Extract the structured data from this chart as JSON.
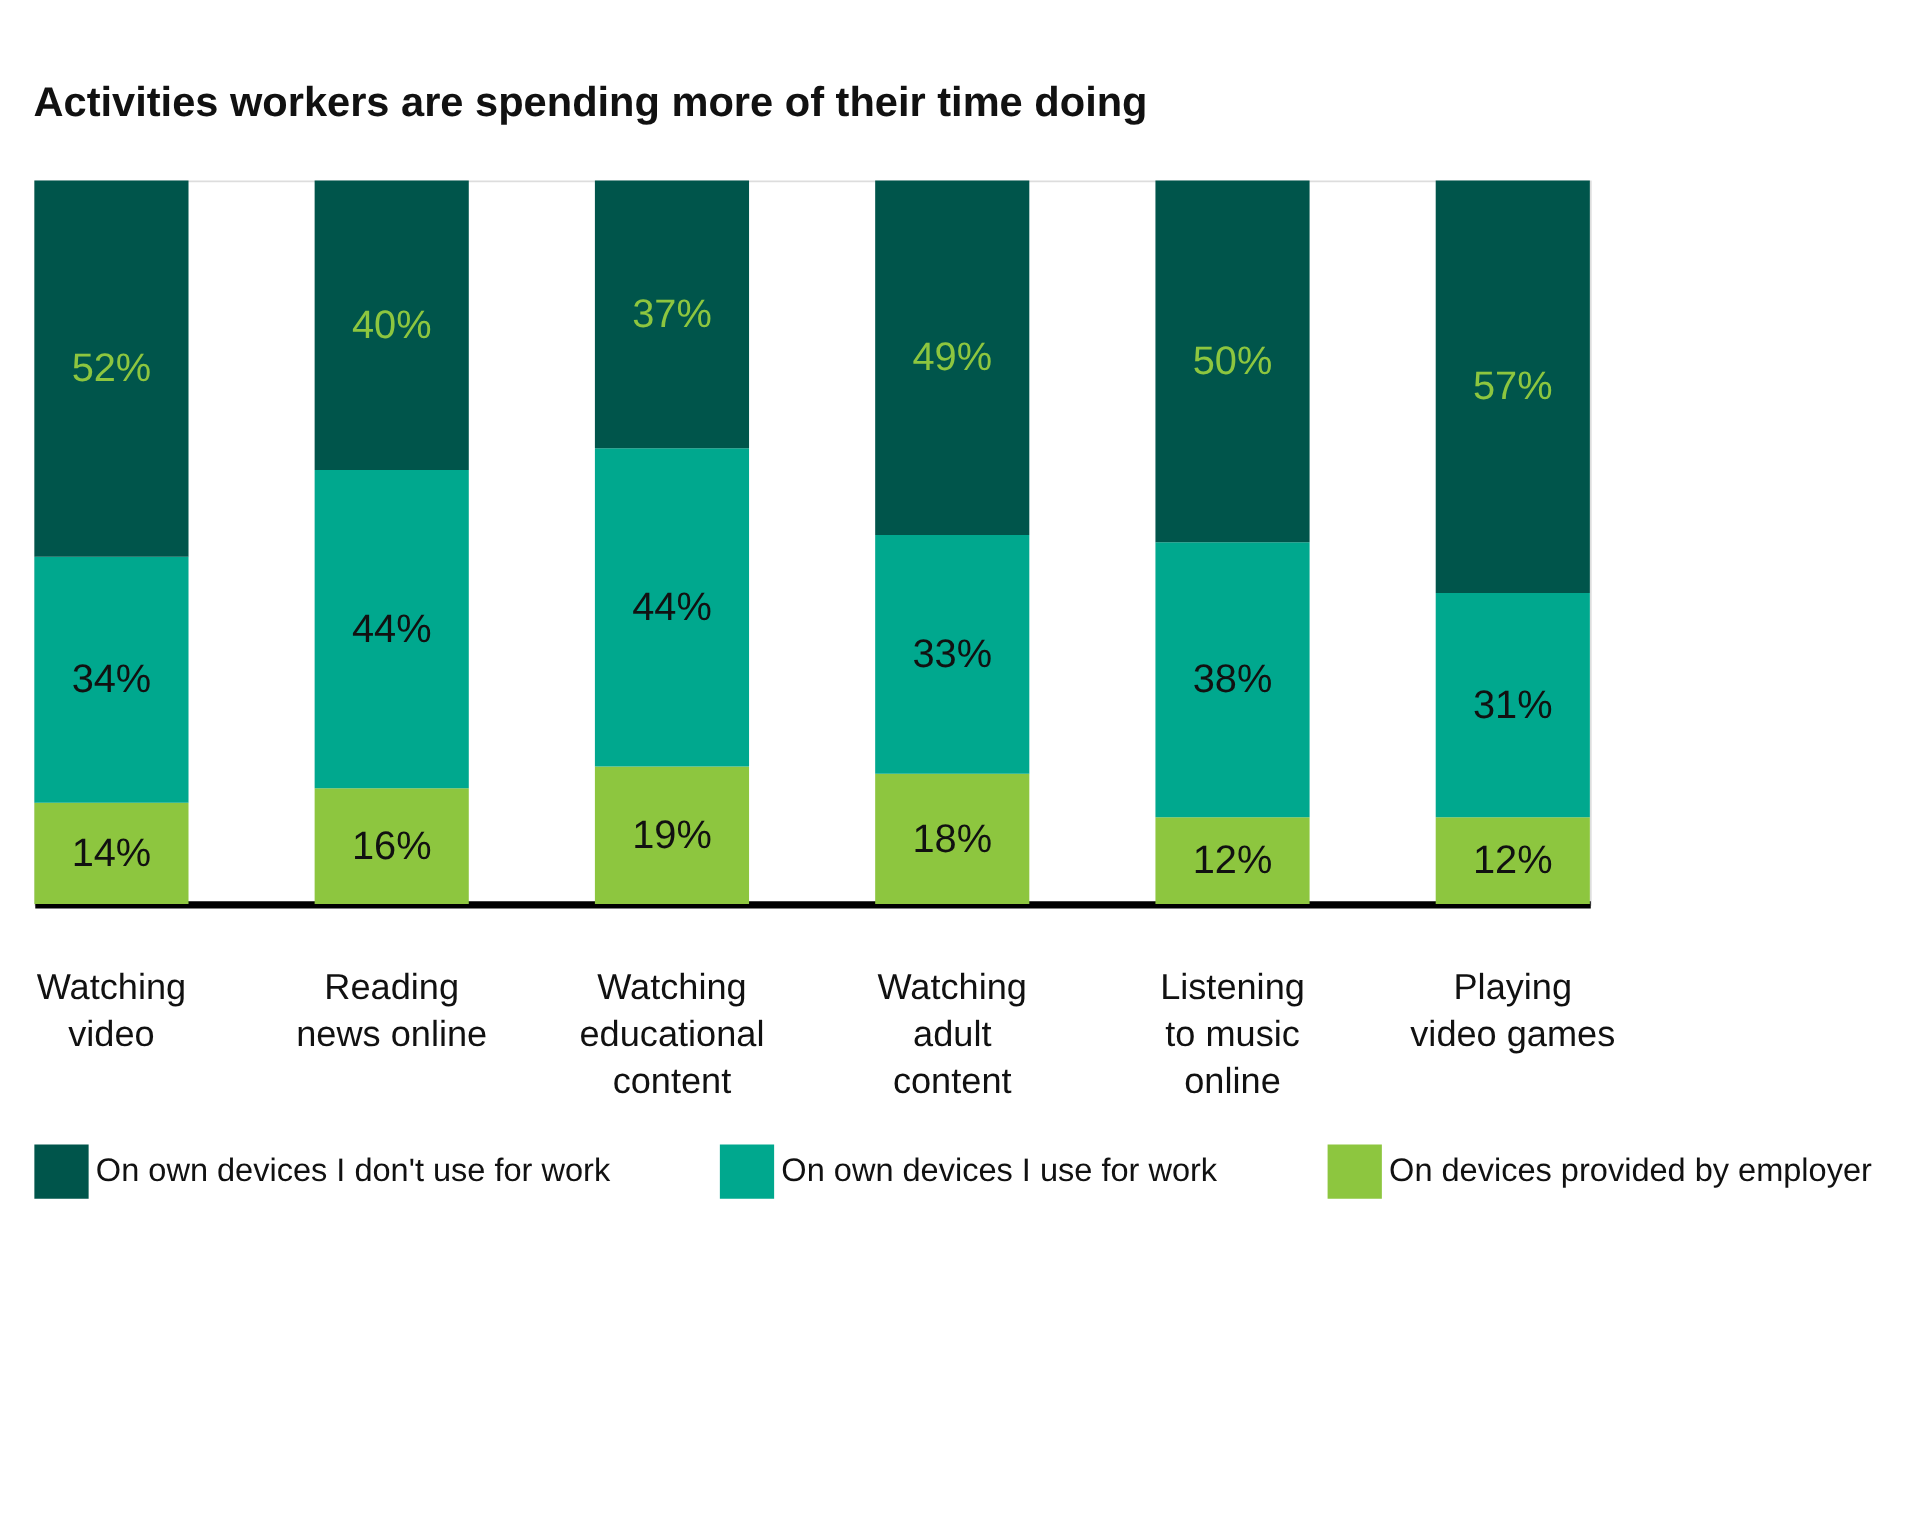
{
  "chart_data": {
    "type": "bar",
    "stacked": true,
    "title": "Activities workers are spending more of their time doing",
    "categories": [
      "Watching video",
      "Reading news online",
      "Watching educational content",
      "Watching adult content",
      "Listening to music online",
      "Playing video games"
    ],
    "series": [
      {
        "name": "On devices provided by employer",
        "color": "#8dc63f",
        "values": [
          14,
          16,
          19,
          18,
          12,
          12
        ],
        "value_labels": [
          "14%",
          "16%",
          "19%",
          "18%",
          "12%",
          "12%"
        ]
      },
      {
        "name": "On own devices I use for work",
        "color": "#00a88e",
        "values": [
          34,
          44,
          44,
          33,
          38,
          31
        ],
        "value_labels": [
          "34%",
          "44%",
          "44%",
          "33%",
          "38%",
          "31%"
        ]
      },
      {
        "name": "On own devices I don't use for work",
        "color": "#00554b",
        "values": [
          52,
          40,
          37,
          49,
          50,
          57
        ],
        "value_labels": [
          "52%",
          "40%",
          "37%",
          "49%",
          "50%",
          "57%"
        ]
      }
    ],
    "legend": "bottom",
    "tick_labels": "x"
  }
}
